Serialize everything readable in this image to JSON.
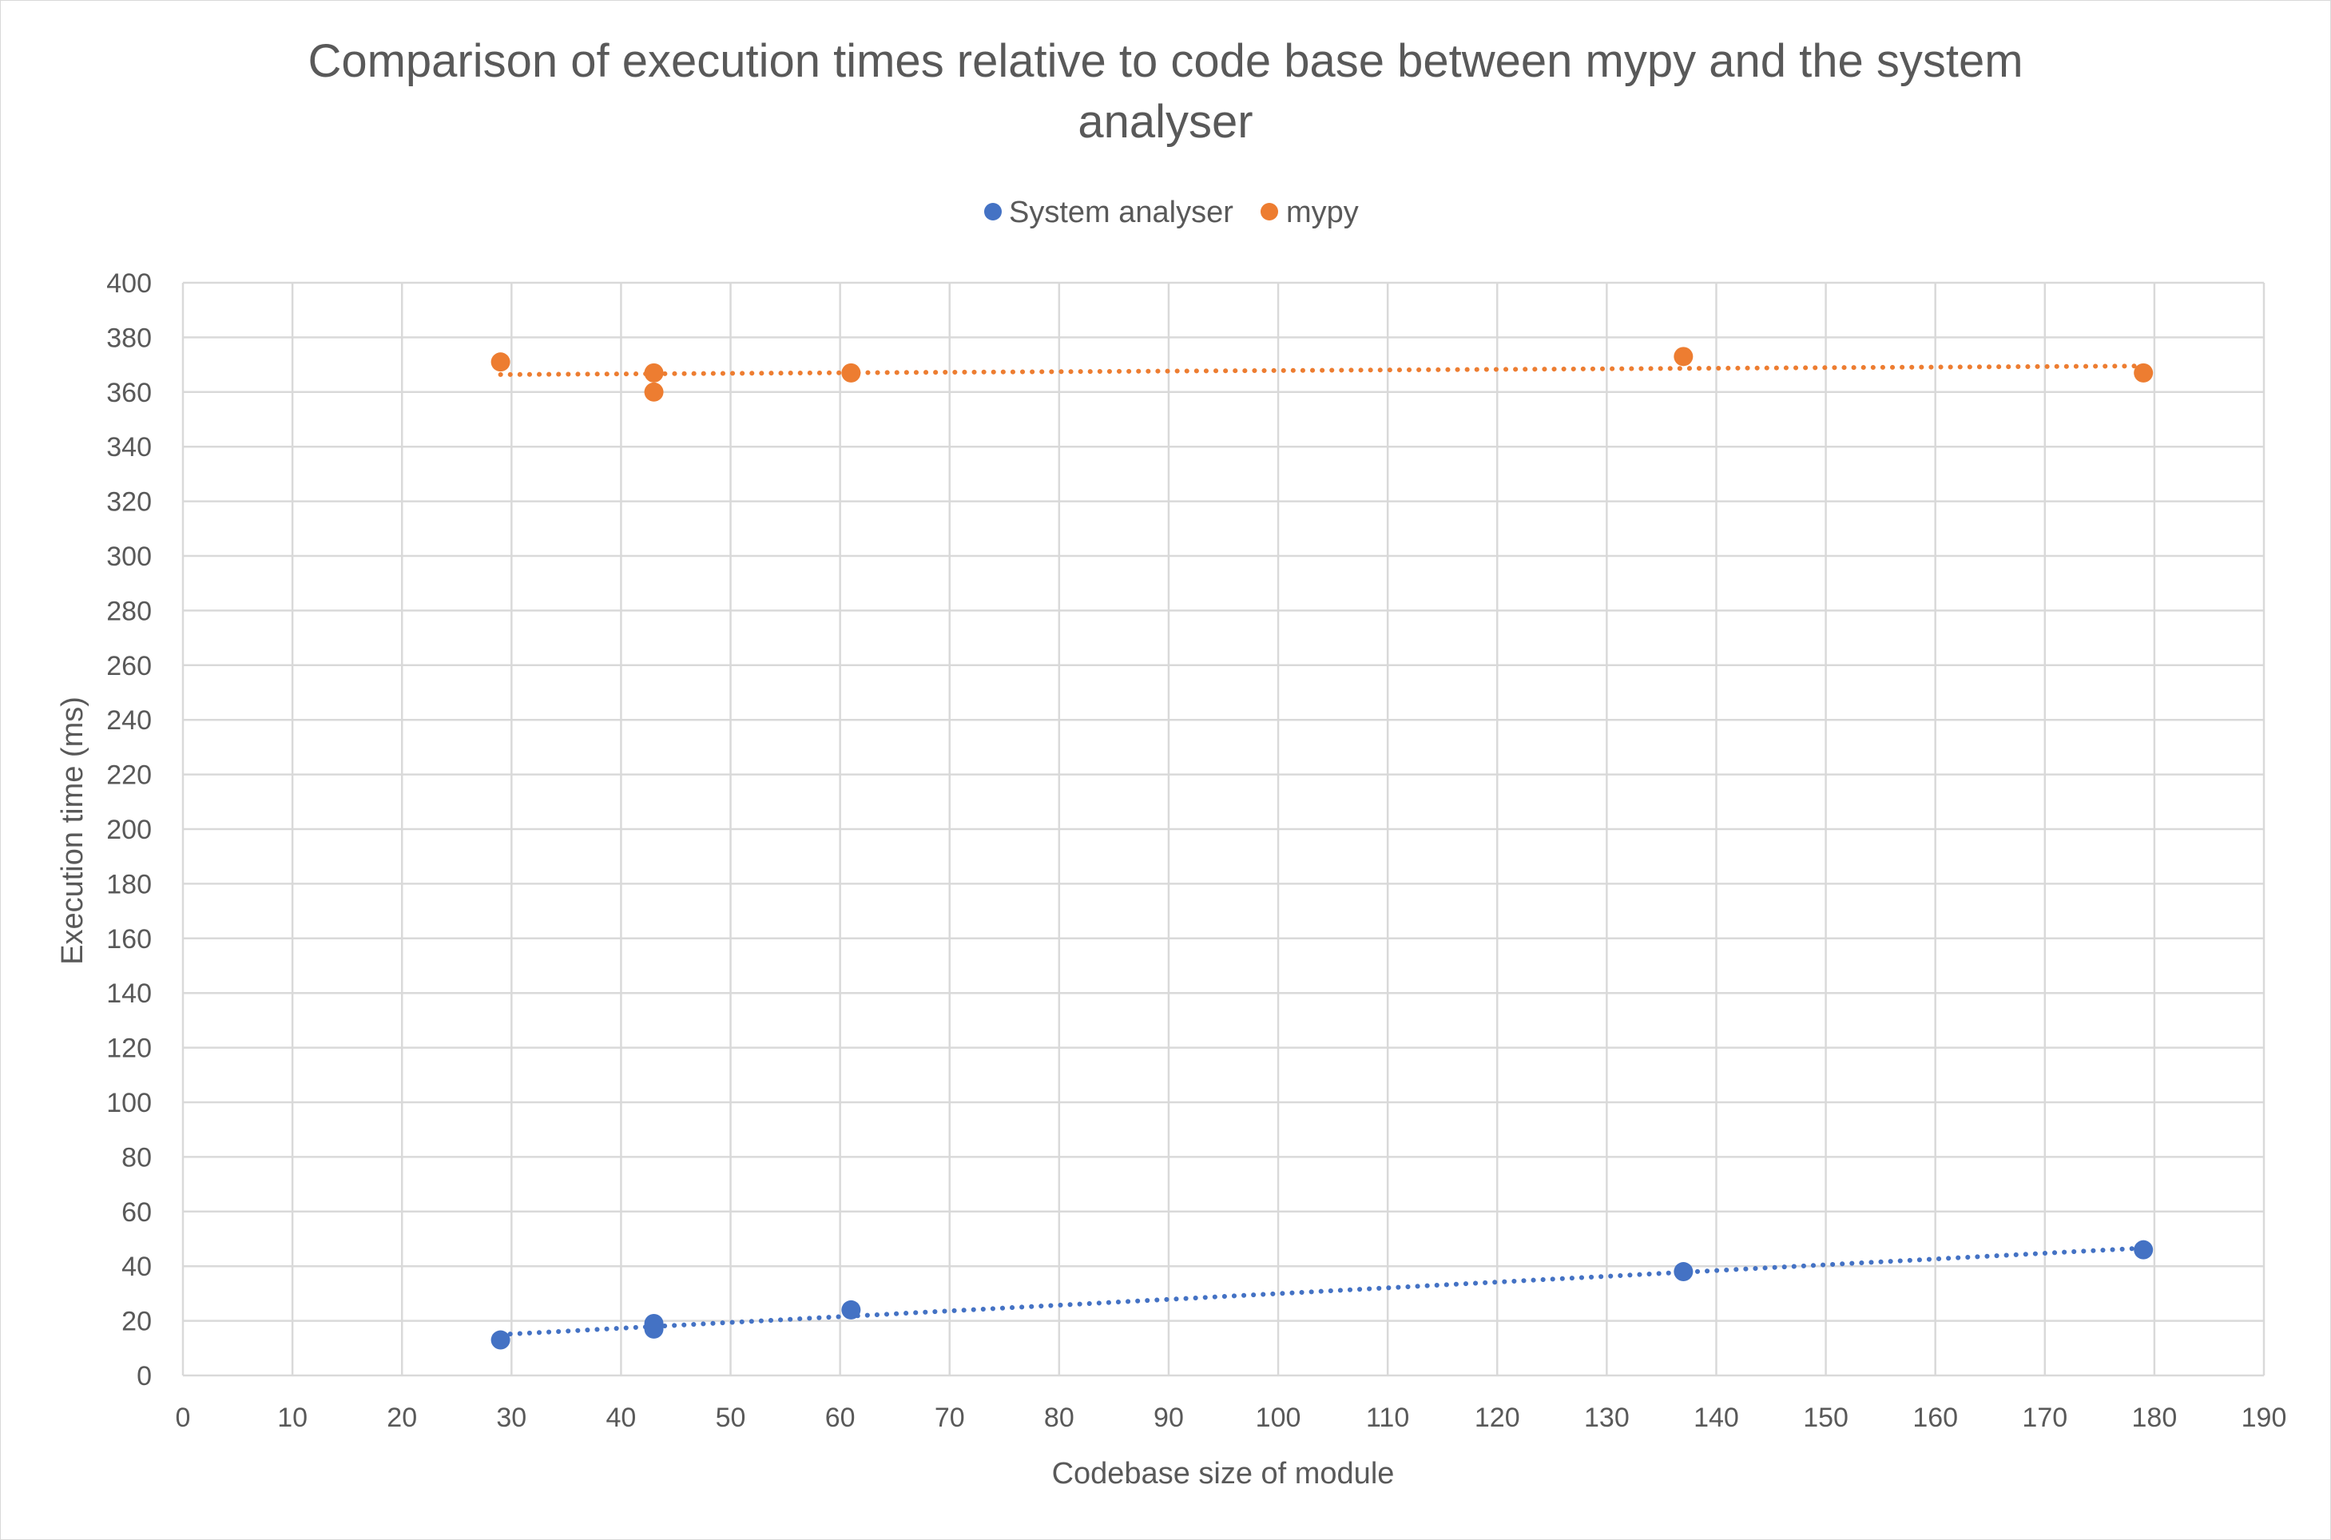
{
  "chart_data": {
    "type": "scatter",
    "title": "Comparison of execution times relative to code base between mypy and the system analyser",
    "title_lines": [
      "Comparison of execution times relative to code base between mypy and the system",
      "analyser"
    ],
    "xlabel": "Codebase size of module",
    "ylabel": "Execution time (ms)",
    "xlim": [
      0,
      190
    ],
    "ylim": [
      0,
      400
    ],
    "x_ticks": [
      0,
      10,
      20,
      30,
      40,
      50,
      60,
      70,
      80,
      90,
      100,
      110,
      120,
      130,
      140,
      150,
      160,
      170,
      180,
      190
    ],
    "y_ticks": [
      0,
      20,
      40,
      60,
      80,
      100,
      120,
      140,
      160,
      180,
      200,
      220,
      240,
      260,
      280,
      300,
      320,
      340,
      360,
      380,
      400
    ],
    "grid": true,
    "legend_position": "top",
    "series": [
      {
        "name": "System analyser",
        "color": "#4472c4",
        "x": [
          29,
          43,
          43,
          61,
          137,
          179
        ],
        "y": [
          13,
          19,
          17,
          24,
          38,
          46
        ],
        "trendline": {
          "type": "linear",
          "style": "dotted"
        }
      },
      {
        "name": "mypy",
        "color": "#ed7d31",
        "x": [
          29,
          43,
          43,
          61,
          137,
          179
        ],
        "y": [
          371,
          367,
          360,
          367,
          373,
          367
        ],
        "trendline": {
          "type": "linear",
          "style": "dotted"
        }
      }
    ]
  }
}
